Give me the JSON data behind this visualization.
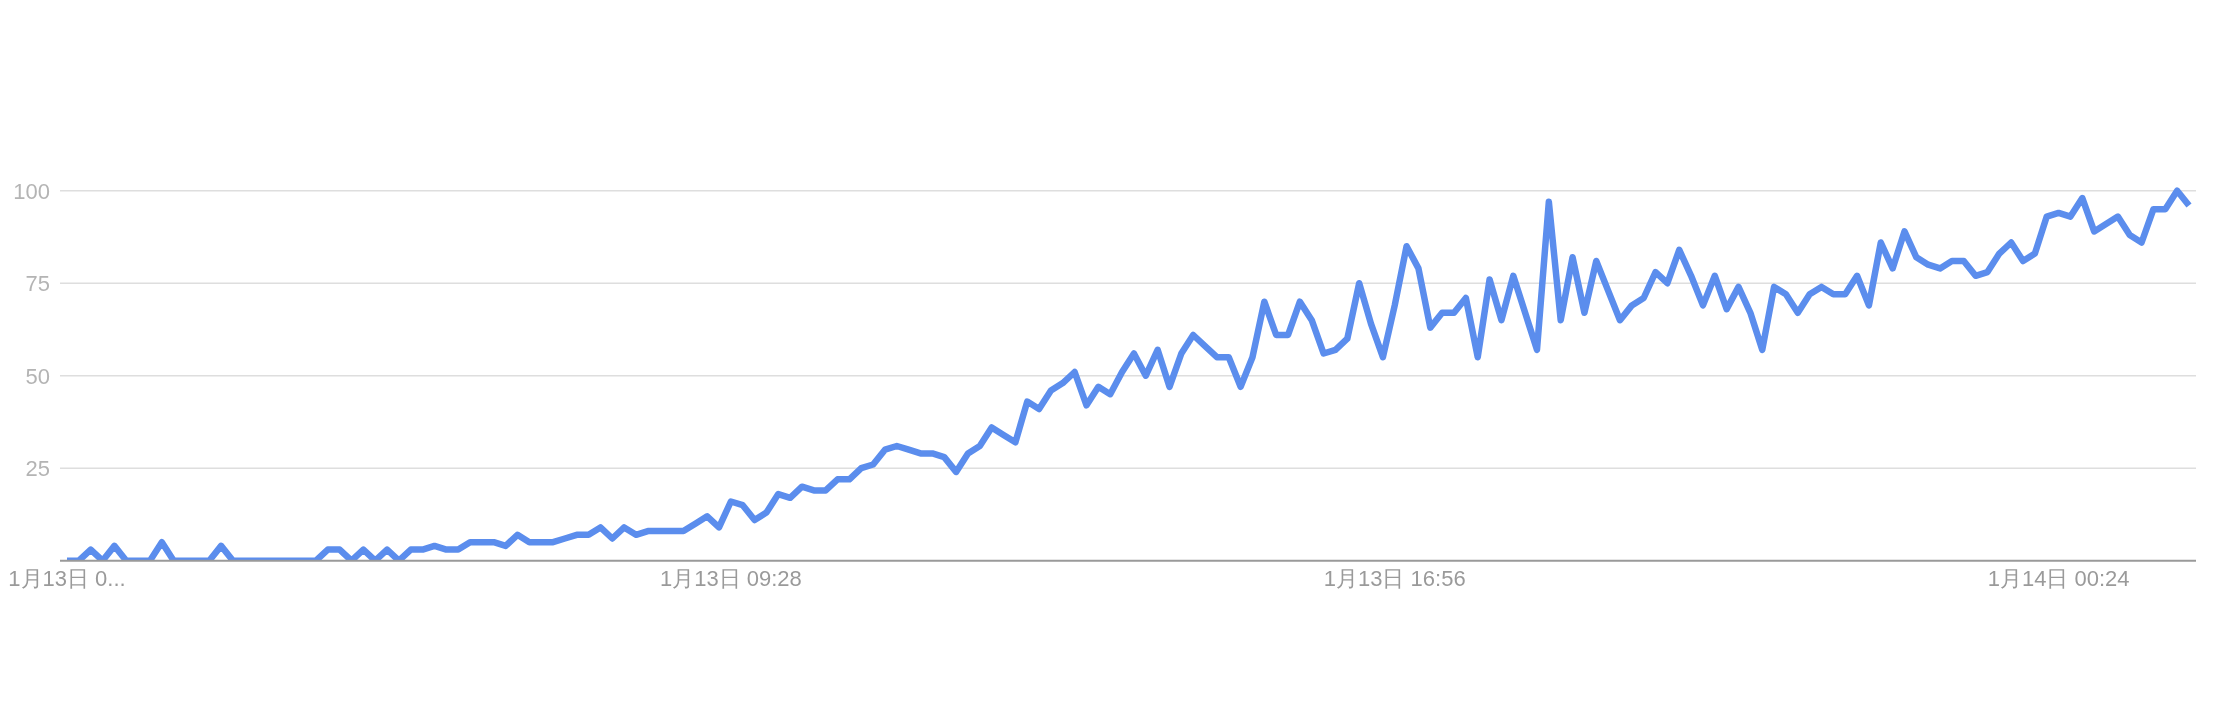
{
  "chart_data": {
    "type": "line",
    "categories": [
      "1月13日 0...",
      null,
      null,
      null,
      null,
      null,
      null,
      null,
      null,
      null,
      null,
      null,
      null,
      null,
      null,
      null,
      null,
      null,
      null,
      null,
      null,
      null,
      null,
      null,
      null,
      null,
      null,
      null,
      null,
      null,
      null,
      null,
      null,
      null,
      null,
      null,
      null,
      null,
      null,
      null,
      null,
      null,
      null,
      null,
      null,
      null,
      null,
      null,
      null,
      null,
      null,
      null,
      null,
      null,
      null,
      null,
      "1月13日 09:28",
      null,
      null,
      null,
      null,
      null,
      null,
      null,
      null,
      null,
      null,
      null,
      null,
      null,
      null,
      null,
      null,
      null,
      null,
      null,
      null,
      null,
      null,
      null,
      null,
      null,
      null,
      null,
      null,
      null,
      null,
      null,
      null,
      null,
      null,
      null,
      null,
      null,
      null,
      null,
      null,
      null,
      null,
      null,
      null,
      null,
      null,
      null,
      null,
      null,
      null,
      null,
      null,
      null,
      null,
      null,
      "1月13日 16:56",
      null,
      null,
      null,
      null,
      null,
      null,
      null,
      null,
      null,
      null,
      null,
      null,
      null,
      null,
      null,
      null,
      null,
      null,
      null,
      null,
      null,
      null,
      null,
      null,
      null,
      null,
      null,
      null,
      null,
      null,
      null,
      null,
      null,
      null,
      null,
      null,
      null,
      null,
      null,
      null,
      null,
      null,
      null,
      null,
      null,
      null,
      null,
      null,
      null,
      null,
      null,
      null,
      null,
      null,
      null,
      "1月14日 00:24",
      null,
      null,
      null,
      null,
      null,
      null,
      null,
      null,
      null,
      null,
      null
    ],
    "series": [
      {
        "color": "#5b8ded",
        "values": [
          0,
          0,
          3,
          0,
          4,
          0,
          0,
          0,
          5,
          0,
          0,
          0,
          0,
          4,
          0,
          0,
          0,
          0,
          0,
          0,
          0,
          0,
          3,
          3,
          0,
          3,
          0,
          3,
          0,
          3,
          3,
          4,
          3,
          3,
          5,
          5,
          5,
          4,
          7,
          5,
          5,
          5,
          6,
          7,
          7,
          9,
          6,
          9,
          7,
          8,
          8,
          8,
          8,
          10,
          12,
          9,
          16,
          15,
          11,
          13,
          18,
          17,
          20,
          19,
          19,
          22,
          22,
          25,
          26,
          30,
          31,
          30,
          29,
          29,
          28,
          24,
          29,
          31,
          36,
          34,
          32,
          43,
          41,
          46,
          48,
          51,
          42,
          47,
          45,
          51,
          56,
          50,
          57,
          47,
          56,
          61,
          58,
          55,
          55,
          47,
          55,
          70,
          61,
          61,
          70,
          65,
          56,
          57,
          60,
          75,
          64,
          55,
          69,
          85,
          79,
          63,
          67,
          67,
          71,
          55,
          76,
          65,
          77,
          67,
          57,
          97,
          65,
          82,
          67,
          81,
          73,
          65,
          69,
          71,
          78,
          75,
          84,
          77,
          69,
          77,
          68,
          74,
          67,
          57,
          74,
          72,
          67,
          72,
          74,
          72,
          72,
          77,
          69,
          86,
          79,
          89,
          82,
          80,
          79,
          81,
          81,
          77,
          78,
          83,
          86,
          81,
          83,
          93,
          94,
          93,
          98,
          89,
          91,
          93,
          88,
          86,
          95,
          95,
          100,
          96
        ]
      }
    ],
    "ylim": [
      0,
      100
    ],
    "yticks": [
      25,
      50,
      75,
      100
    ],
    "grid": "y",
    "line_style": "solid"
  }
}
